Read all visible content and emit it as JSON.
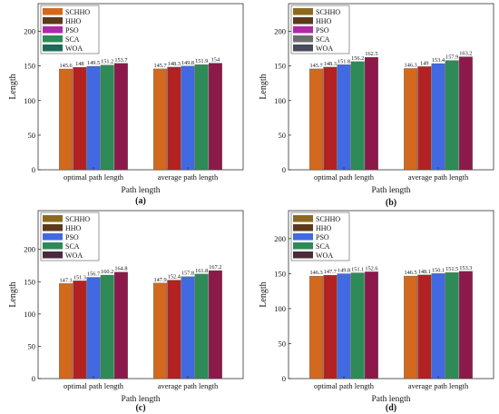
{
  "legend_items": [
    "SCHHO",
    "HHO",
    "PSO",
    "SCA",
    "WOA"
  ],
  "colors": {
    "a": [
      "#d2691e",
      "#b22222",
      "#4169e1",
      "#2e8b57",
      "#8b1a4a"
    ],
    "b": [
      "#d2691e",
      "#b22222",
      "#4169e1",
      "#2e8b57",
      "#8b1a4a"
    ],
    "c": [
      "#d2691e",
      "#b22222",
      "#4169e1",
      "#2e8b57",
      "#8b1a4a"
    ],
    "d": [
      "#d2691e",
      "#b22222",
      "#4169e1",
      "#2e8b57",
      "#8b1a4a"
    ]
  },
  "legend_colors": {
    "a": [
      "#d2691e",
      "#5c3a1e",
      "#b02aa8",
      "#2e8b57",
      "#1c6b5a"
    ],
    "b": [
      "#8b6a20",
      "#5c3a1e",
      "#b02aa8",
      "#6d6d6d",
      "#4a4a5c"
    ],
    "c": [
      "#8b6a20",
      "#5c3a1e",
      "#4169e1",
      "#2e8b57",
      "#4a2a3c"
    ],
    "d": [
      "#8b6a20",
      "#5c3a1e",
      "#4169e1",
      "#2e8b57",
      "#4a2a3c"
    ]
  },
  "chart_data": [
    {
      "panel": "(a)",
      "type": "bar",
      "categories": [
        "optimal path length",
        "average path length"
      ],
      "xlabel": "Path length",
      "ylabel": "Length",
      "ylim": [
        0,
        240
      ],
      "yticks": [
        0,
        50,
        100,
        150,
        200
      ],
      "series": [
        {
          "name": "SCHHO",
          "values": [
            145.6,
            145.7
          ],
          "labels": [
            "145.6",
            "145.7"
          ]
        },
        {
          "name": "HHO",
          "values": [
            148,
            148.3
          ],
          "labels": [
            "148",
            "148.3"
          ]
        },
        {
          "name": "PSO",
          "values": [
            149.5,
            149.8
          ],
          "labels": [
            "149.5",
            "149.8"
          ]
        },
        {
          "name": "SCA",
          "values": [
            151.2,
            151.9
          ],
          "labels": [
            "151.2",
            "151.9"
          ]
        },
        {
          "name": "WOA",
          "values": [
            153.7,
            154
          ],
          "labels": [
            "153.7",
            "154"
          ]
        }
      ]
    },
    {
      "panel": "(b)",
      "type": "bar",
      "categories": [
        "optimal path length",
        "average path length"
      ],
      "xlabel": "Path length",
      "ylabel": "Length",
      "ylim": [
        0,
        240
      ],
      "yticks": [
        0,
        50,
        100,
        150,
        200
      ],
      "series": [
        {
          "name": "SCHHO",
          "values": [
            145.7,
            146.3
          ],
          "labels": [
            "145.7",
            "146.3"
          ]
        },
        {
          "name": "HHO",
          "values": [
            148.3,
            149
          ],
          "labels": [
            "148.3",
            "149"
          ]
        },
        {
          "name": "PSO",
          "values": [
            151.8,
            153.4
          ],
          "labels": [
            "151.8",
            "153.4"
          ]
        },
        {
          "name": "SCA",
          "values": [
            156.2,
            157.9
          ],
          "labels": [
            "156.2",
            "157.9"
          ]
        },
        {
          "name": "WOA",
          "values": [
            162.5,
            163.2
          ],
          "labels": [
            "162.5",
            "163.2"
          ]
        }
      ]
    },
    {
      "panel": "(c)",
      "type": "bar",
      "categories": [
        "optimal path length",
        "average path length"
      ],
      "xlabel": "Path length",
      "ylabel": "Length",
      "ylim": [
        0,
        260
      ],
      "yticks": [
        0,
        50,
        100,
        150,
        200
      ],
      "series": [
        {
          "name": "SCHHO",
          "values": [
            147.1,
            147.9
          ],
          "labels": [
            "147.1",
            "147.9"
          ]
        },
        {
          "name": "HHO",
          "values": [
            151.3,
            152.4
          ],
          "labels": [
            "151.3",
            "152.4"
          ]
        },
        {
          "name": "PSO",
          "values": [
            156.7,
            157.8
          ],
          "labels": [
            "156.7",
            "157.8"
          ]
        },
        {
          "name": "SCA",
          "values": [
            160.2,
            161.8
          ],
          "labels": [
            "160.2",
            "161.8"
          ]
        },
        {
          "name": "WOA",
          "values": [
            164.8,
            167.2
          ],
          "labels": [
            "164.8",
            "167.2"
          ]
        }
      ]
    },
    {
      "panel": "(d)",
      "type": "bar",
      "categories": [
        "optimal path length",
        "average path length"
      ],
      "xlabel": "Path length",
      "ylabel": "Length",
      "ylim": [
        0,
        240
      ],
      "yticks": [
        0,
        50,
        100,
        150,
        200
      ],
      "series": [
        {
          "name": "SCHHO",
          "values": [
            146.3,
            146.5
          ],
          "labels": [
            "146.3",
            "146.5"
          ]
        },
        {
          "name": "HHO",
          "values": [
            147.7,
            148.1
          ],
          "labels": [
            "147.7",
            "148.1"
          ]
        },
        {
          "name": "PSO",
          "values": [
            149.8,
            150.1
          ],
          "labels": [
            "149.8",
            "150.1"
          ]
        },
        {
          "name": "SCA",
          "values": [
            151.1,
            151.5
          ],
          "labels": [
            "151.1",
            "151.5"
          ]
        },
        {
          "name": "WOA",
          "values": [
            152.6,
            153.3
          ],
          "labels": [
            "152.6",
            "153.3"
          ]
        }
      ]
    }
  ]
}
